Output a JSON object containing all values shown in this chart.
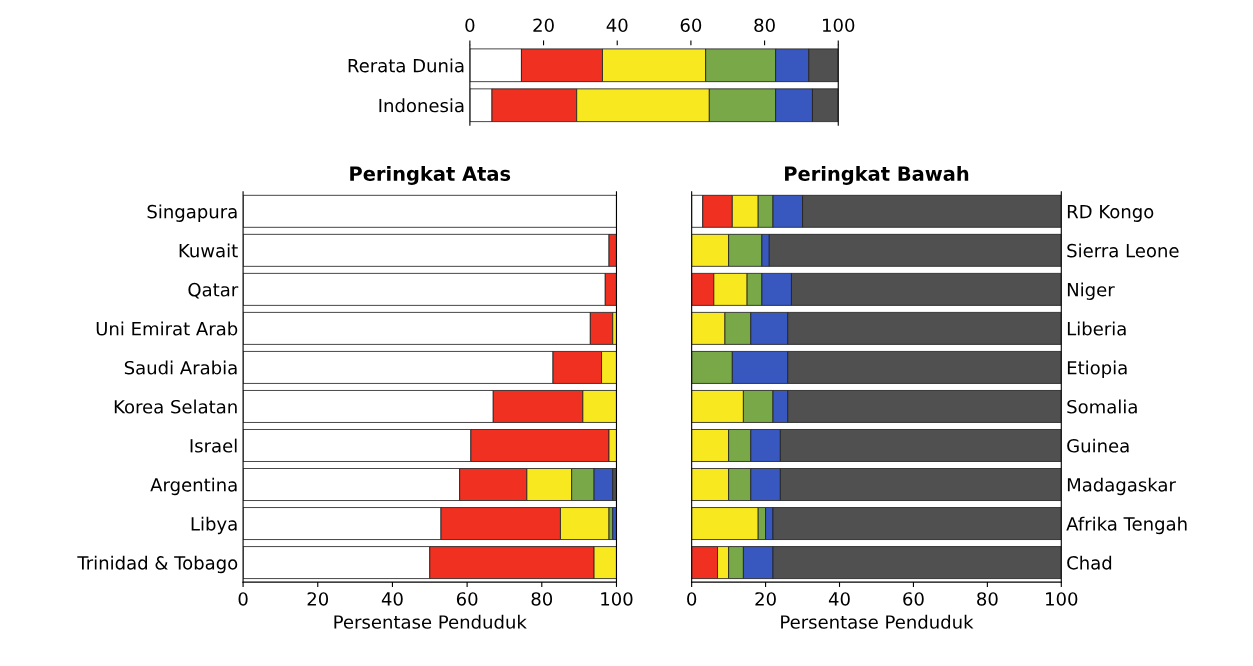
{
  "chart_data": [
    {
      "type": "bar",
      "orientation": "horizontal",
      "stacked": true,
      "categories": [
        "Rerata Dunia",
        "Indonesia"
      ],
      "xlim": [
        0,
        100
      ],
      "xticks": [
        0,
        20,
        40,
        60,
        80,
        100
      ],
      "series": [
        {
          "color": "#ffffff",
          "values": [
            14,
            6
          ]
        },
        {
          "color": "#f03020",
          "values": [
            22,
            23
          ]
        },
        {
          "color": "#f8e820",
          "values": [
            28,
            36
          ]
        },
        {
          "color": "#78a848",
          "values": [
            19,
            18
          ]
        },
        {
          "color": "#3858c0",
          "values": [
            9,
            10
          ]
        },
        {
          "color": "#505050",
          "values": [
            8,
            7
          ]
        }
      ]
    },
    {
      "type": "bar",
      "orientation": "horizontal",
      "stacked": true,
      "title": "Peringkat Atas",
      "xlabel": "Persentase Penduduk",
      "categories": [
        "Singapura",
        "Kuwait",
        "Qatar",
        "Uni Emirat Arab",
        "Saudi Arabia",
        "Korea Selatan",
        "Israel",
        "Argentina",
        "Libya",
        "Trinidad & Tobago"
      ],
      "xlim": [
        0,
        100
      ],
      "xticks": [
        0,
        20,
        40,
        60,
        80,
        100
      ],
      "series": [
        {
          "color": "#ffffff",
          "values": [
            100,
            98,
            97,
            93,
            83,
            67,
            61,
            58,
            53,
            50
          ]
        },
        {
          "color": "#f03020",
          "values": [
            0,
            2,
            3,
            6,
            13,
            24,
            37,
            18,
            32,
            44
          ]
        },
        {
          "color": "#f8e820",
          "values": [
            0,
            0,
            0,
            1,
            4,
            9,
            2,
            12,
            13,
            6
          ]
        },
        {
          "color": "#78a848",
          "values": [
            0,
            0,
            0,
            0,
            0,
            0,
            0,
            6,
            1,
            0
          ]
        },
        {
          "color": "#3858c0",
          "values": [
            0,
            0,
            0,
            0,
            0,
            0,
            0,
            5,
            1,
            0
          ]
        },
        {
          "color": "#505050",
          "values": [
            0,
            0,
            0,
            0,
            0,
            0,
            0,
            1,
            0,
            0
          ]
        }
      ]
    },
    {
      "type": "bar",
      "orientation": "horizontal",
      "stacked": true,
      "title": "Peringkat Bawah",
      "xlabel": "Persentase Penduduk",
      "categories": [
        "RD Kongo",
        "Sierra Leone",
        "Niger",
        "Liberia",
        "Etiopia",
        "Somalia",
        "Guinea",
        "Madagaskar",
        "Afrika Tengah",
        "Chad"
      ],
      "xlim": [
        0,
        100
      ],
      "xticks": [
        0,
        20,
        40,
        60,
        80,
        100
      ],
      "series": [
        {
          "color": "#ffffff",
          "values": [
            3,
            0,
            0,
            0,
            0,
            0,
            0,
            0,
            0,
            0
          ]
        },
        {
          "color": "#f03020",
          "values": [
            8,
            0,
            6,
            0,
            0,
            0,
            0,
            0,
            0,
            7
          ]
        },
        {
          "color": "#f8e820",
          "values": [
            7,
            10,
            9,
            9,
            0,
            14,
            10,
            10,
            18,
            3
          ]
        },
        {
          "color": "#78a848",
          "values": [
            4,
            9,
            4,
            7,
            11,
            8,
            6,
            6,
            2,
            4
          ]
        },
        {
          "color": "#3858c0",
          "values": [
            8,
            2,
            8,
            10,
            15,
            4,
            8,
            8,
            2,
            8
          ]
        },
        {
          "color": "#505050",
          "values": [
            70,
            79,
            73,
            74,
            74,
            74,
            76,
            76,
            78,
            78
          ]
        }
      ]
    }
  ]
}
